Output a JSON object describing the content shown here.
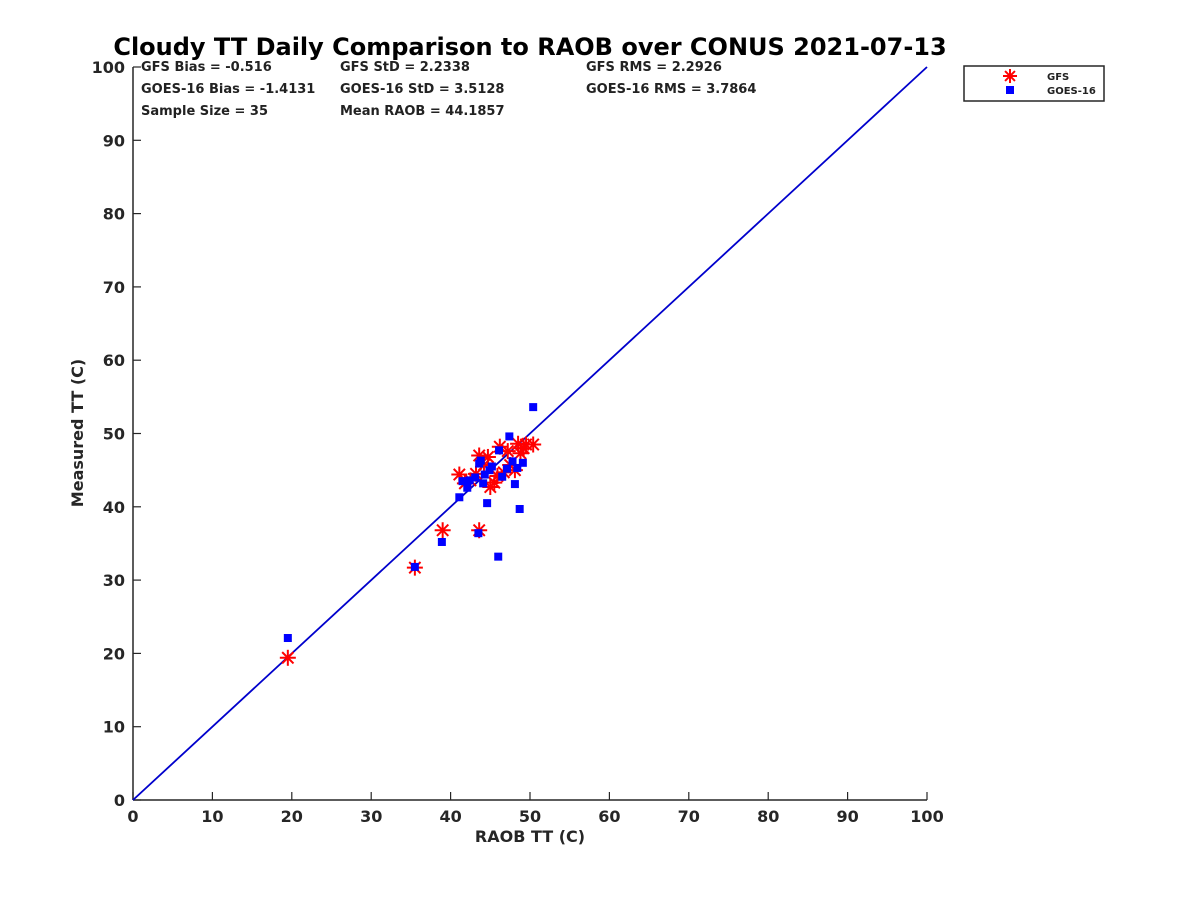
{
  "chart_data": {
    "type": "scatter",
    "title": "Cloudy TT Daily Comparison to RAOB over CONUS 2021-07-13",
    "xlabel": "RAOB TT (C)",
    "ylabel": "Measured TT (C)",
    "xlim": [
      0,
      100
    ],
    "ylim": [
      0,
      100
    ],
    "xticks": [
      "0",
      "10",
      "20",
      "30",
      "40",
      "50",
      "60",
      "70",
      "80",
      "90",
      "100"
    ],
    "yticks": [
      "0",
      "10",
      "20",
      "30",
      "40",
      "50",
      "60",
      "70",
      "80",
      "90",
      "100"
    ],
    "grid": false,
    "legend_position": "outside-top-right",
    "reference_line": {
      "from": [
        0,
        0
      ],
      "to": [
        100,
        100
      ],
      "color": "#0000cc"
    },
    "stats": [
      [
        "GFS Bias = -0.516",
        "GFS StD = 2.2338",
        "GFS RMS = 2.2926"
      ],
      [
        "GOES-16 Bias = -1.4131",
        "GOES-16 StD = 3.5128",
        "GOES-16 RMS = 3.7864"
      ],
      [
        "Sample Size = 35",
        "Mean RAOB = 44.1857"
      ]
    ],
    "series": [
      {
        "name": "GFS",
        "marker": "asterisk",
        "color": "#ff0000",
        "points": [
          [
            19.5,
            19.4
          ],
          [
            35.5,
            31.7
          ],
          [
            39.0,
            36.8
          ],
          [
            43.6,
            36.8
          ],
          [
            41.1,
            44.4
          ],
          [
            41.8,
            43.2
          ],
          [
            42.5,
            43.6
          ],
          [
            43.2,
            44.5
          ],
          [
            43.6,
            47.0
          ],
          [
            44.2,
            45.7
          ],
          [
            44.7,
            46.8
          ],
          [
            45.0,
            42.7
          ],
          [
            45.5,
            43.3
          ],
          [
            45.9,
            44.2
          ],
          [
            46.2,
            48.2
          ],
          [
            46.7,
            44.7
          ],
          [
            47.2,
            47.6
          ],
          [
            47.5,
            45.7
          ],
          [
            48.1,
            45.0
          ],
          [
            48.5,
            48.6
          ],
          [
            48.8,
            47.3
          ],
          [
            49.2,
            48.0
          ],
          [
            49.5,
            48.5
          ],
          [
            50.4,
            48.5
          ]
        ]
      },
      {
        "name": "GOES-16",
        "marker": "square",
        "color": "#0000ff",
        "points": [
          [
            19.5,
            22.1
          ],
          [
            35.5,
            31.8
          ],
          [
            38.9,
            35.2
          ],
          [
            41.1,
            41.3
          ],
          [
            41.5,
            43.5
          ],
          [
            42.1,
            42.6
          ],
          [
            42.4,
            43.6
          ],
          [
            43.1,
            44.0
          ],
          [
            43.5,
            36.4
          ],
          [
            43.6,
            45.9
          ],
          [
            43.8,
            46.3
          ],
          [
            44.1,
            43.2
          ],
          [
            44.3,
            44.4
          ],
          [
            44.6,
            40.5
          ],
          [
            44.9,
            45.0
          ],
          [
            45.2,
            45.5
          ],
          [
            46.0,
            33.2
          ],
          [
            46.1,
            47.7
          ],
          [
            46.5,
            44.1
          ],
          [
            47.1,
            45.2
          ],
          [
            47.4,
            49.6
          ],
          [
            47.8,
            46.2
          ],
          [
            48.1,
            43.1
          ],
          [
            48.4,
            45.3
          ],
          [
            48.7,
            39.7
          ],
          [
            49.1,
            46.0
          ],
          [
            50.4,
            53.6
          ]
        ]
      }
    ]
  }
}
